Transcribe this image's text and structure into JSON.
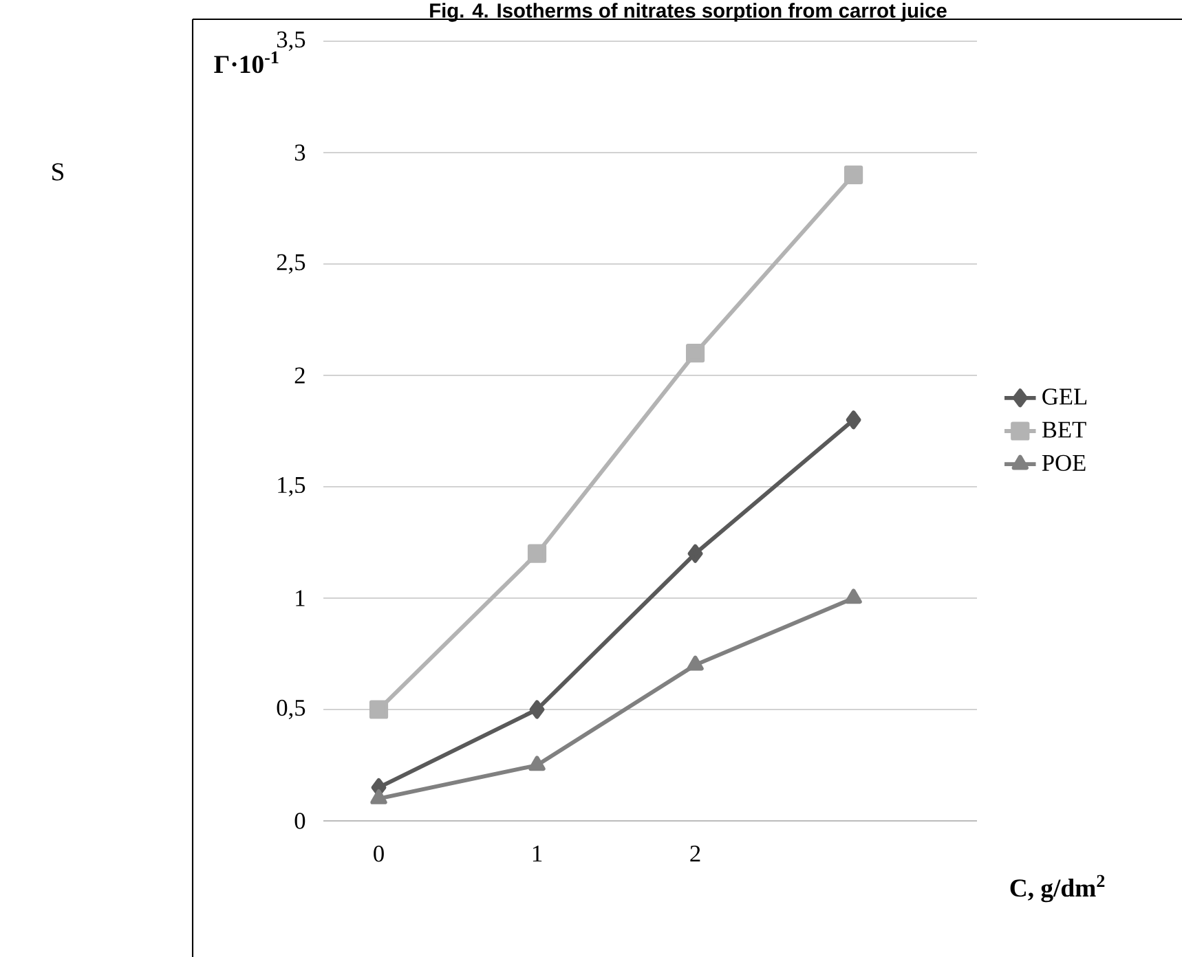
{
  "chart_data": {
    "type": "line",
    "title": "Fig. 4. Isotherms of nitrates sorption from carrot juice",
    "annotations": [
      "S"
    ],
    "xlabel": "C, g/dm$^{2}$",
    "ylabel": "Γ·10$^{-1}$",
    "categories": [
      "0",
      "1",
      "2",
      null
    ],
    "series": [
      {
        "name": "GEL",
        "color": "#595959",
        "marker": "diamond",
        "values": [
          0.15,
          0.5,
          1.2,
          1.8
        ]
      },
      {
        "name": "BET",
        "color": "#b3b3b3",
        "marker": "square",
        "values": [
          0.5,
          1.2,
          2.1,
          2.9
        ]
      },
      {
        "name": "POE",
        "color": "#808080",
        "marker": "triangle",
        "values": [
          0.1,
          0.25,
          0.7,
          1.0
        ]
      }
    ],
    "ylim": [
      0,
      3.5
    ],
    "yticks": [
      0,
      {
        "value": 0.5,
        "label": "0,5"
      },
      1,
      {
        "value": 1.5,
        "label": "1,5"
      },
      2,
      {
        "value": 2.5,
        "label": "2,5"
      },
      3,
      {
        "value": 3.5,
        "label": "3,5"
      }
    ],
    "grid": "y",
    "legend": "right",
    "line_style": "solid"
  }
}
